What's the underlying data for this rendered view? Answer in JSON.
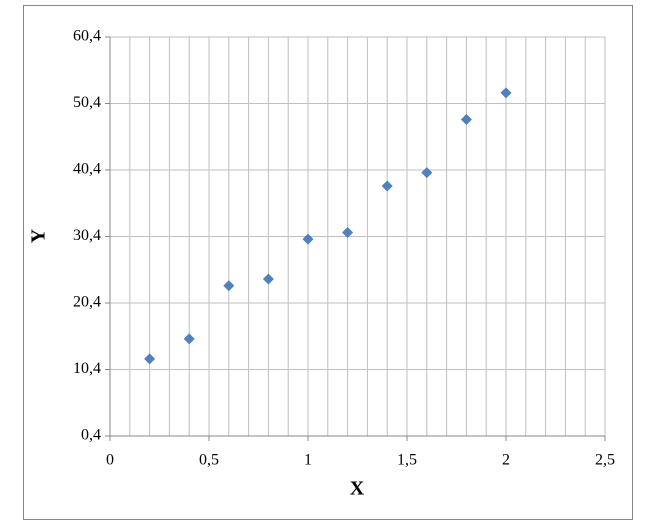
{
  "chart_data": {
    "type": "scatter",
    "x_label": "X",
    "y_label": "Y",
    "x": [
      0.2,
      0.4,
      0.6,
      0.8,
      1.0,
      1.2,
      1.4,
      1.6,
      1.8,
      2.0
    ],
    "series": [
      {
        "color": "#4f81bd",
        "values": [
          12,
          15,
          23,
          24,
          30,
          31,
          38,
          40,
          48,
          52
        ]
      }
    ],
    "xlim": [
      0,
      2.5
    ],
    "xticks": [
      0,
      {
        "value": 0.5,
        "label": "0,5"
      },
      1,
      {
        "value": 1.5,
        "label": "1,5"
      },
      2,
      {
        "value": 2.5,
        "label": "2,5"
      }
    ],
    "xgrid_step": 0.1,
    "ylim": [
      0.4,
      60.4
    ],
    "yticks": [
      {
        "value": 0.4,
        "label": "0,4"
      },
      {
        "value": 10.4,
        "label": "10,4"
      },
      {
        "value": 20.4,
        "label": "20,4"
      },
      {
        "value": 30.4,
        "label": "30,4"
      },
      {
        "value": 40.4,
        "label": "40,4"
      },
      {
        "value": 50.4,
        "label": "50,4"
      },
      {
        "value": 60.4,
        "label": "60,4"
      }
    ],
    "grid": true
  }
}
